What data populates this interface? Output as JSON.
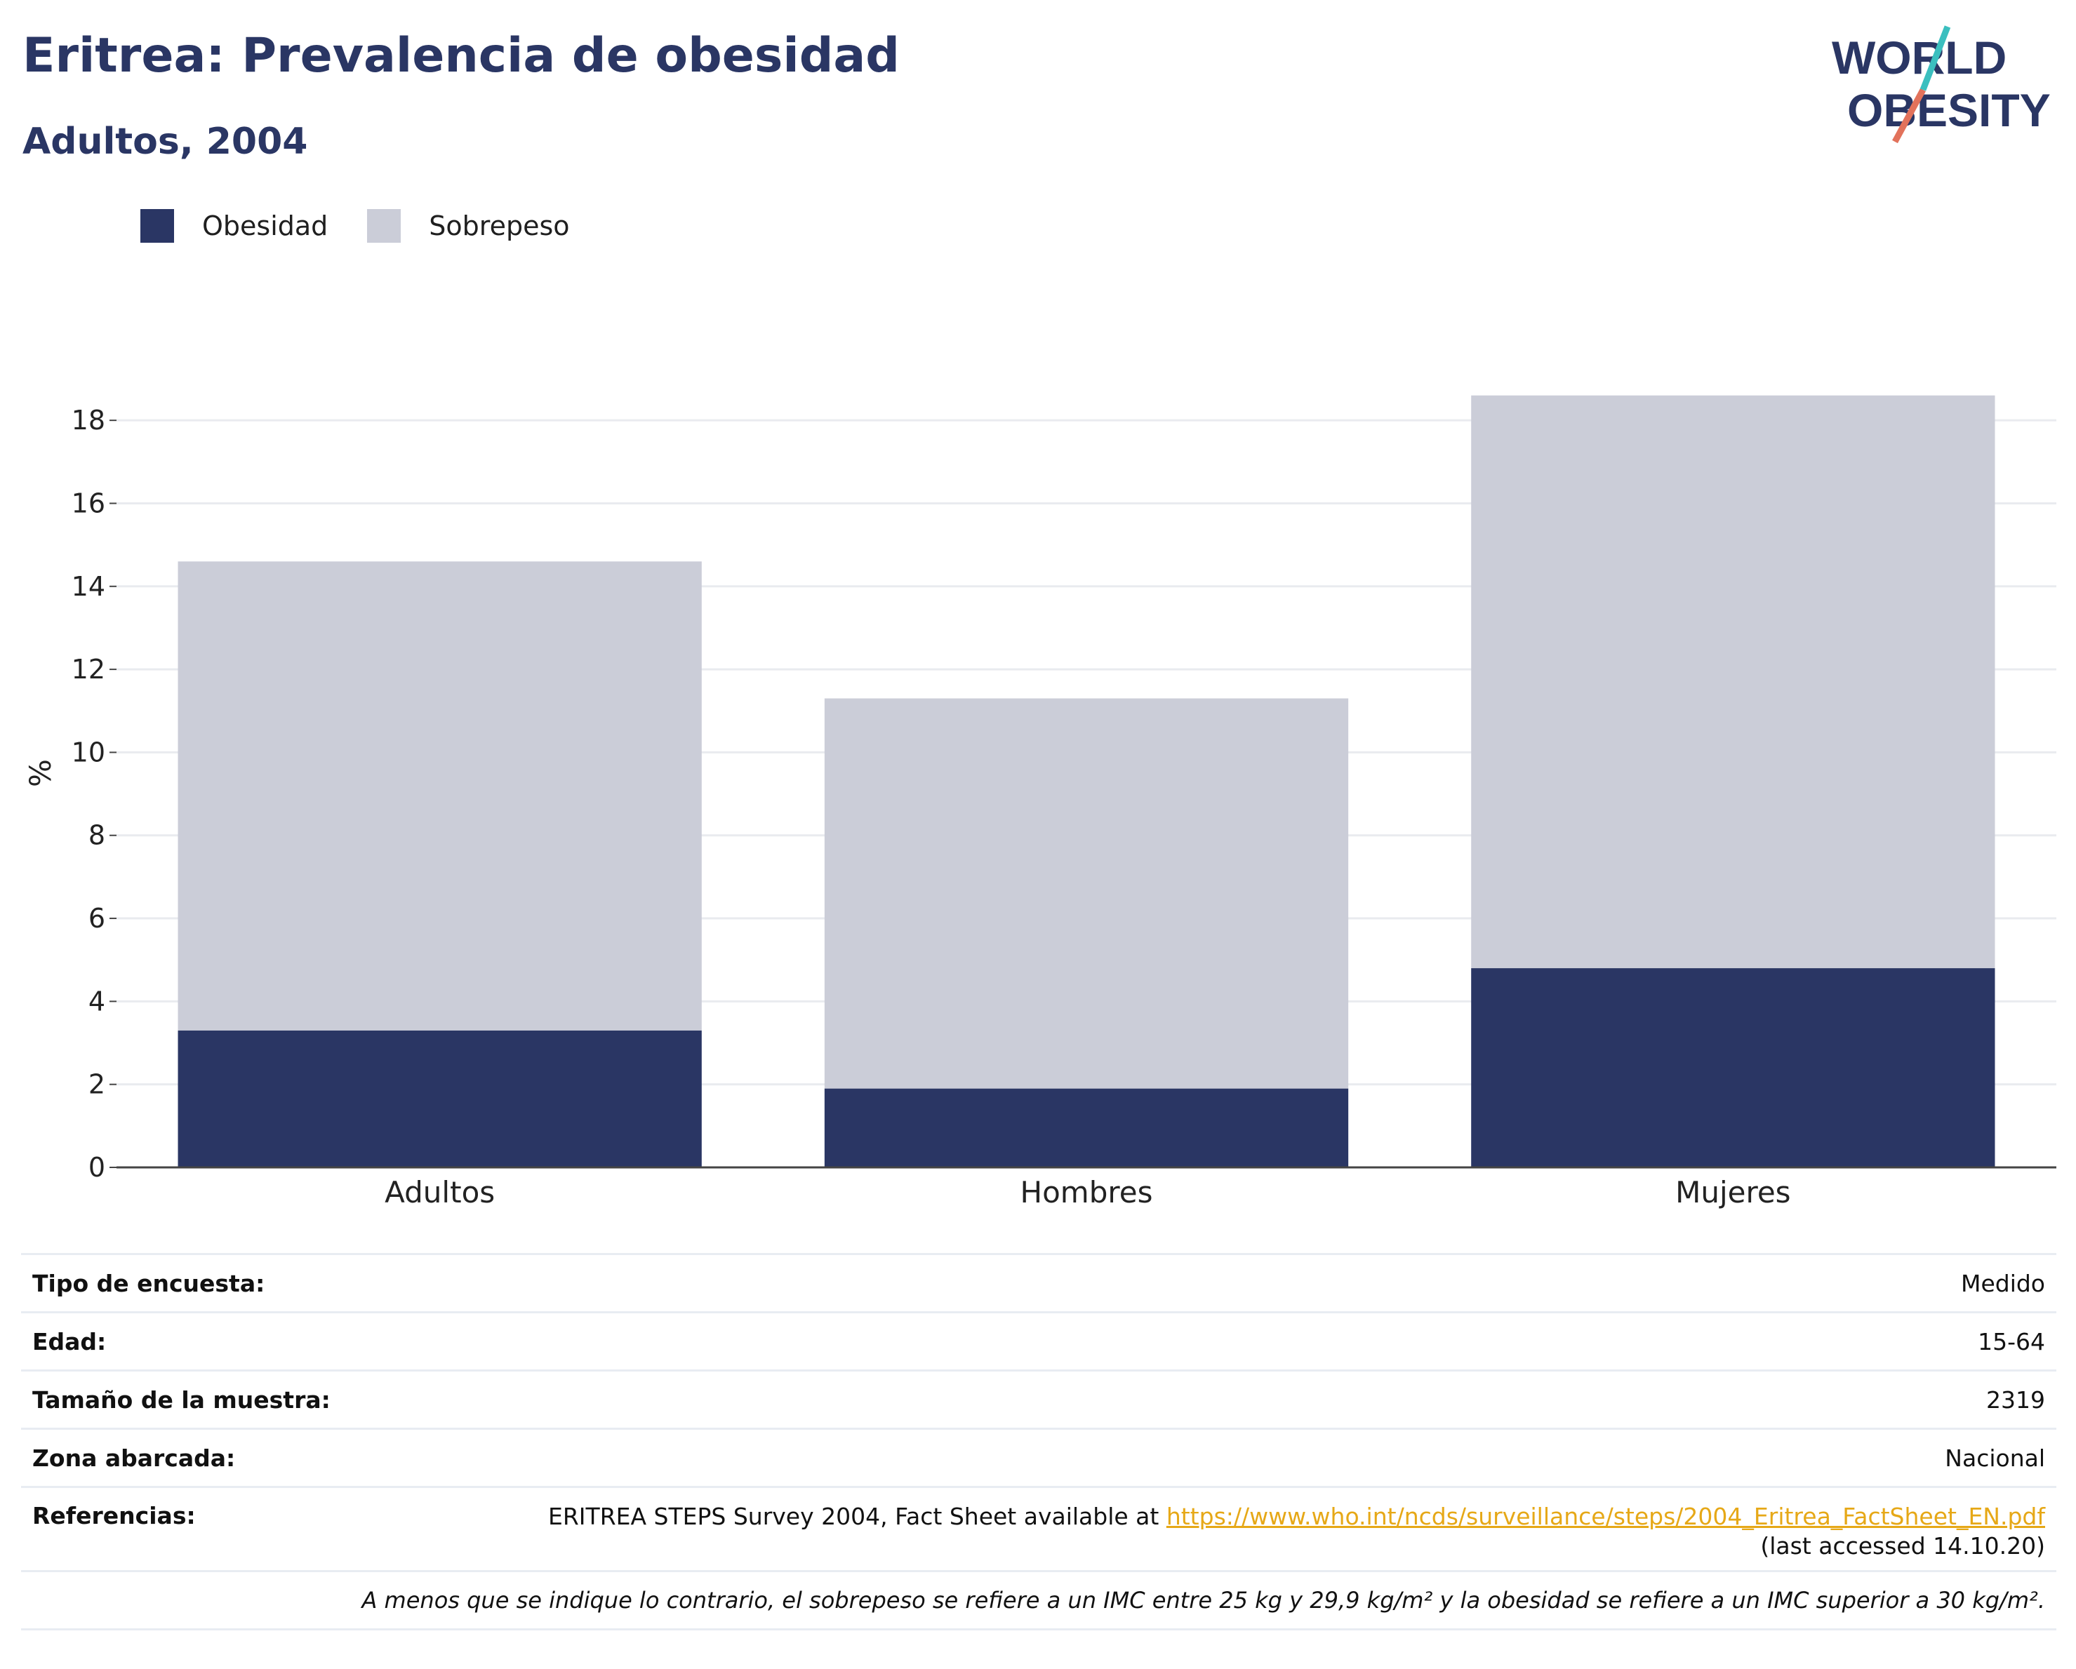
{
  "header": {
    "title": "Eritrea: Prevalencia de obesidad",
    "subtitle": "Adultos, 2004"
  },
  "logo": {
    "line1": "WORLD",
    "line2": "OBESITY"
  },
  "legend": {
    "items": [
      {
        "label": "Obesidad",
        "color": "#2a3664"
      },
      {
        "label": "Sobrepeso",
        "color": "#cbcdd8"
      }
    ]
  },
  "chart_data": {
    "type": "bar",
    "stacked": true,
    "categories": [
      "Adultos",
      "Hombres",
      "Mujeres"
    ],
    "series": [
      {
        "name": "Obesidad",
        "values": [
          3.3,
          1.9,
          4.8
        ],
        "color": "#2a3664"
      },
      {
        "name": "Sobrepeso",
        "values": [
          11.3,
          9.4,
          13.8
        ],
        "color": "#cbcdd8"
      }
    ],
    "ylabel": "%",
    "ylim": [
      0,
      19
    ],
    "yticks": [
      0,
      2,
      4,
      6,
      8,
      10,
      12,
      14,
      16,
      18
    ],
    "grid": true,
    "legend_position": "top-left"
  },
  "info": {
    "survey_type_label": "Tipo de encuesta:",
    "survey_type_value": "Medido",
    "age_label": "Edad:",
    "age_value": "15-64",
    "sample_label": "Tamaño de la muestra:",
    "sample_value": "2319",
    "area_label": "Zona abarcada:",
    "area_value": "Nacional",
    "refs_label": "Referencias:",
    "refs_text": "ERITREA STEPS Survey 2004, Fact Sheet available at ",
    "refs_link": "https://www.who.int/ncds/surveillance/steps/2004_Eritrea_FactSheet_EN.pdf",
    "refs_accessed": "(last accessed 14.10.20)",
    "note": "A menos que se indique lo contrario, el sobrepeso se refiere a un IMC entre 25 kg y 29,9 kg/m² y la obesidad se refiere a un IMC superior a 30 kg/m²."
  }
}
